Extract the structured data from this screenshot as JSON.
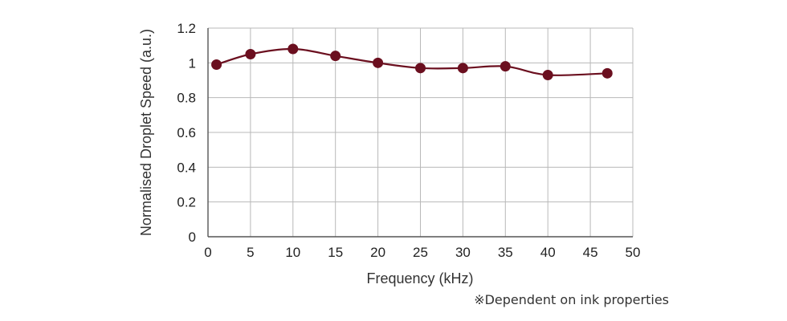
{
  "chart_data": {
    "type": "line",
    "xlabel": "Frequency (kHz)",
    "ylabel": "Normalised Droplet Speed (a.u.)",
    "xlim": [
      0,
      50
    ],
    "ylim": [
      0,
      1.2
    ],
    "xticks": [
      "0",
      "5",
      "10",
      "15",
      "20",
      "25",
      "30",
      "35",
      "40",
      "45",
      "50"
    ],
    "yticks": [
      "0",
      "0.2",
      "0.4",
      "0.6",
      "0.8",
      "1",
      "1.2"
    ],
    "grid": true,
    "legend": "none",
    "series": [
      {
        "x": [
          1,
          5,
          10,
          15,
          20,
          25,
          30,
          35,
          40,
          47
        ],
        "values": [
          0.99,
          1.05,
          1.08,
          1.04,
          1.0,
          0.97,
          0.97,
          0.98,
          0.93,
          0.94
        ],
        "color": "#6b0f1f",
        "marker": "circle",
        "smooth": true
      }
    ],
    "annotation": "※Dependent on ink properties"
  },
  "colors": {
    "grid": "#b8b8b8",
    "axis": "#555555",
    "series": "#6b0f1f"
  }
}
